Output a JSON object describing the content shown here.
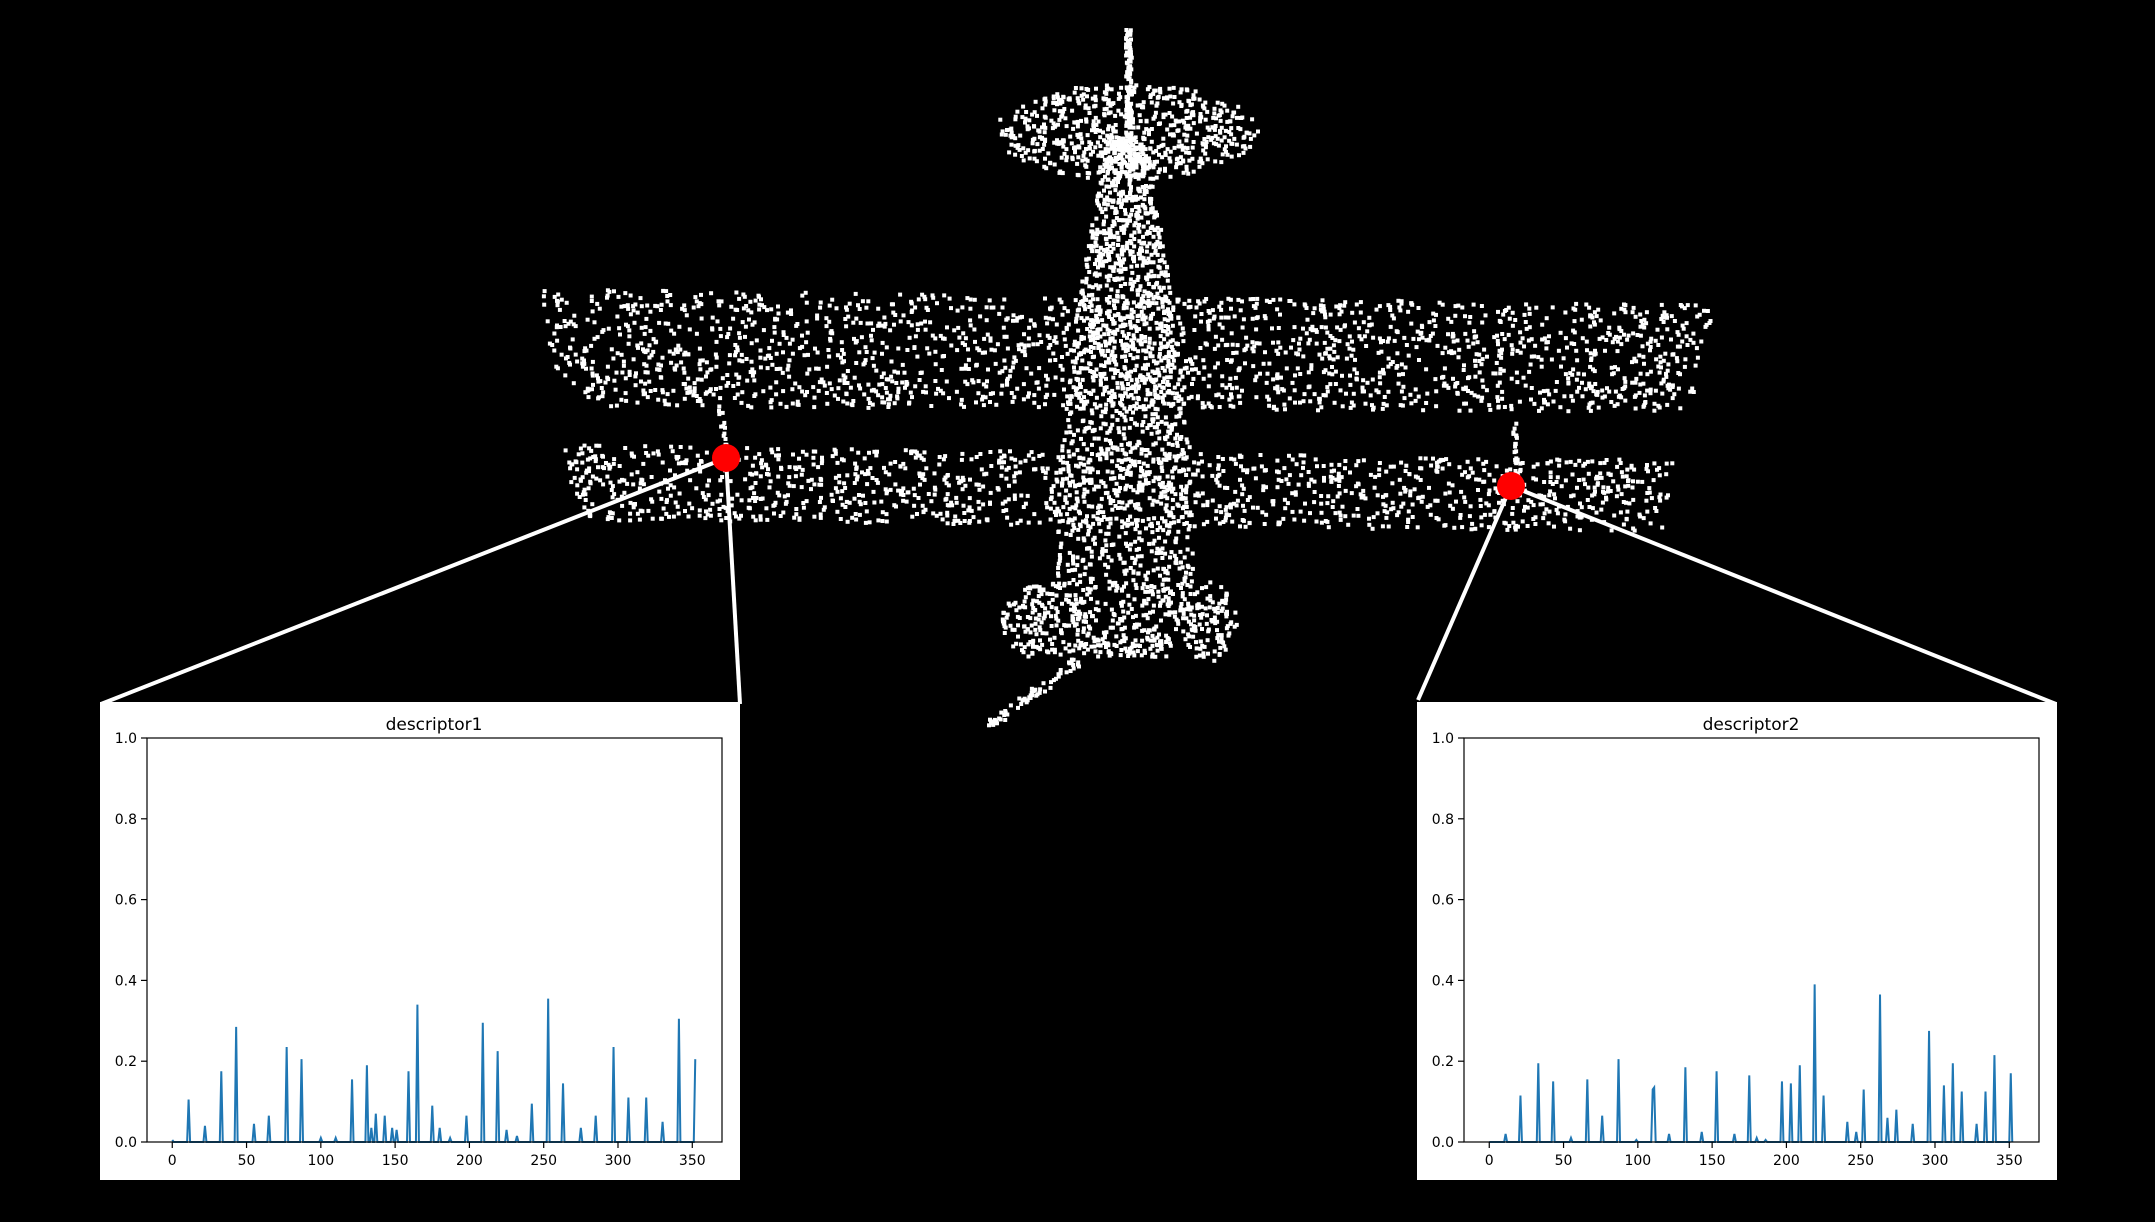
{
  "colors": {
    "background": "#000000",
    "points": "#ffffff",
    "keypoint": "#ff0000",
    "connector": "#ffffff",
    "panel": "#ffffff",
    "line": "#1f77b4"
  },
  "point_cloud": {
    "object": "biplane",
    "keypoints": [
      "keypoint-left-lower-wing",
      "keypoint-right-lower-wing"
    ]
  },
  "chart_data": [
    {
      "type": "line",
      "title": "descriptor1",
      "xlabel": "",
      "ylabel": "",
      "xlim": [
        -17,
        370
      ],
      "ylim": [
        0,
        1.0
      ],
      "xticks": [
        0,
        50,
        100,
        150,
        200,
        250,
        300,
        350
      ],
      "yticks": [
        0.0,
        0.2,
        0.4,
        0.6,
        0.8,
        1.0
      ],
      "grid": false,
      "legend": "none",
      "length": 353,
      "peaks": [
        [
          0,
          0.005
        ],
        [
          11,
          0.105
        ],
        [
          22,
          0.04
        ],
        [
          33,
          0.175
        ],
        [
          43,
          0.285
        ],
        [
          55,
          0.045
        ],
        [
          65,
          0.065
        ],
        [
          77,
          0.235
        ],
        [
          87,
          0.205
        ],
        [
          100,
          0.01
        ],
        [
          110,
          0.01
        ],
        [
          121,
          0.155
        ],
        [
          131,
          0.19
        ],
        [
          134,
          0.035
        ],
        [
          137,
          0.07
        ],
        [
          143,
          0.065
        ],
        [
          148,
          0.035
        ],
        [
          151,
          0.03
        ],
        [
          159,
          0.175
        ],
        [
          165,
          0.34
        ],
        [
          175,
          0.09
        ],
        [
          180,
          0.035
        ],
        [
          187,
          0.01
        ],
        [
          198,
          0.065
        ],
        [
          209,
          0.295
        ],
        [
          219,
          0.225
        ],
        [
          225,
          0.03
        ],
        [
          232,
          0.015
        ],
        [
          242,
          0.095
        ],
        [
          253,
          0.355
        ],
        [
          263,
          0.145
        ],
        [
          275,
          0.035
        ],
        [
          285,
          0.065
        ],
        [
          297,
          0.235
        ],
        [
          307,
          0.11
        ],
        [
          319,
          0.11
        ],
        [
          330,
          0.05
        ],
        [
          341,
          0.305
        ],
        [
          352,
          0.205
        ]
      ]
    },
    {
      "type": "line",
      "title": "descriptor2",
      "xlabel": "",
      "ylabel": "",
      "xlim": [
        -17,
        370
      ],
      "ylim": [
        0,
        1.0
      ],
      "xticks": [
        0,
        50,
        100,
        150,
        200,
        250,
        300,
        350
      ],
      "yticks": [
        0.0,
        0.2,
        0.4,
        0.6,
        0.8,
        1.0
      ],
      "grid": false,
      "legend": "none",
      "length": 353,
      "peaks": [
        [
          11,
          0.02
        ],
        [
          21,
          0.115
        ],
        [
          33,
          0.195
        ],
        [
          43,
          0.15
        ],
        [
          55,
          0.01
        ],
        [
          66,
          0.155
        ],
        [
          76,
          0.065
        ],
        [
          87,
          0.205
        ],
        [
          99,
          0.005
        ],
        [
          110,
          0.13
        ],
        [
          111,
          0.135
        ],
        [
          121,
          0.02
        ],
        [
          132,
          0.185
        ],
        [
          143,
          0.025
        ],
        [
          153,
          0.175
        ],
        [
          165,
          0.02
        ],
        [
          175,
          0.165
        ],
        [
          180,
          0.01
        ],
        [
          186,
          0.005
        ],
        [
          197,
          0.15
        ],
        [
          203,
          0.145
        ],
        [
          209,
          0.19
        ],
        [
          219,
          0.39
        ],
        [
          225,
          0.115
        ],
        [
          241,
          0.05
        ],
        [
          247,
          0.025
        ],
        [
          252,
          0.13
        ],
        [
          263,
          0.365
        ],
        [
          268,
          0.06
        ],
        [
          274,
          0.08
        ],
        [
          285,
          0.045
        ],
        [
          296,
          0.275
        ],
        [
          306,
          0.14
        ],
        [
          312,
          0.195
        ],
        [
          318,
          0.125
        ],
        [
          328,
          0.045
        ],
        [
          334,
          0.125
        ],
        [
          340,
          0.215
        ],
        [
          351,
          0.17
        ]
      ]
    }
  ]
}
